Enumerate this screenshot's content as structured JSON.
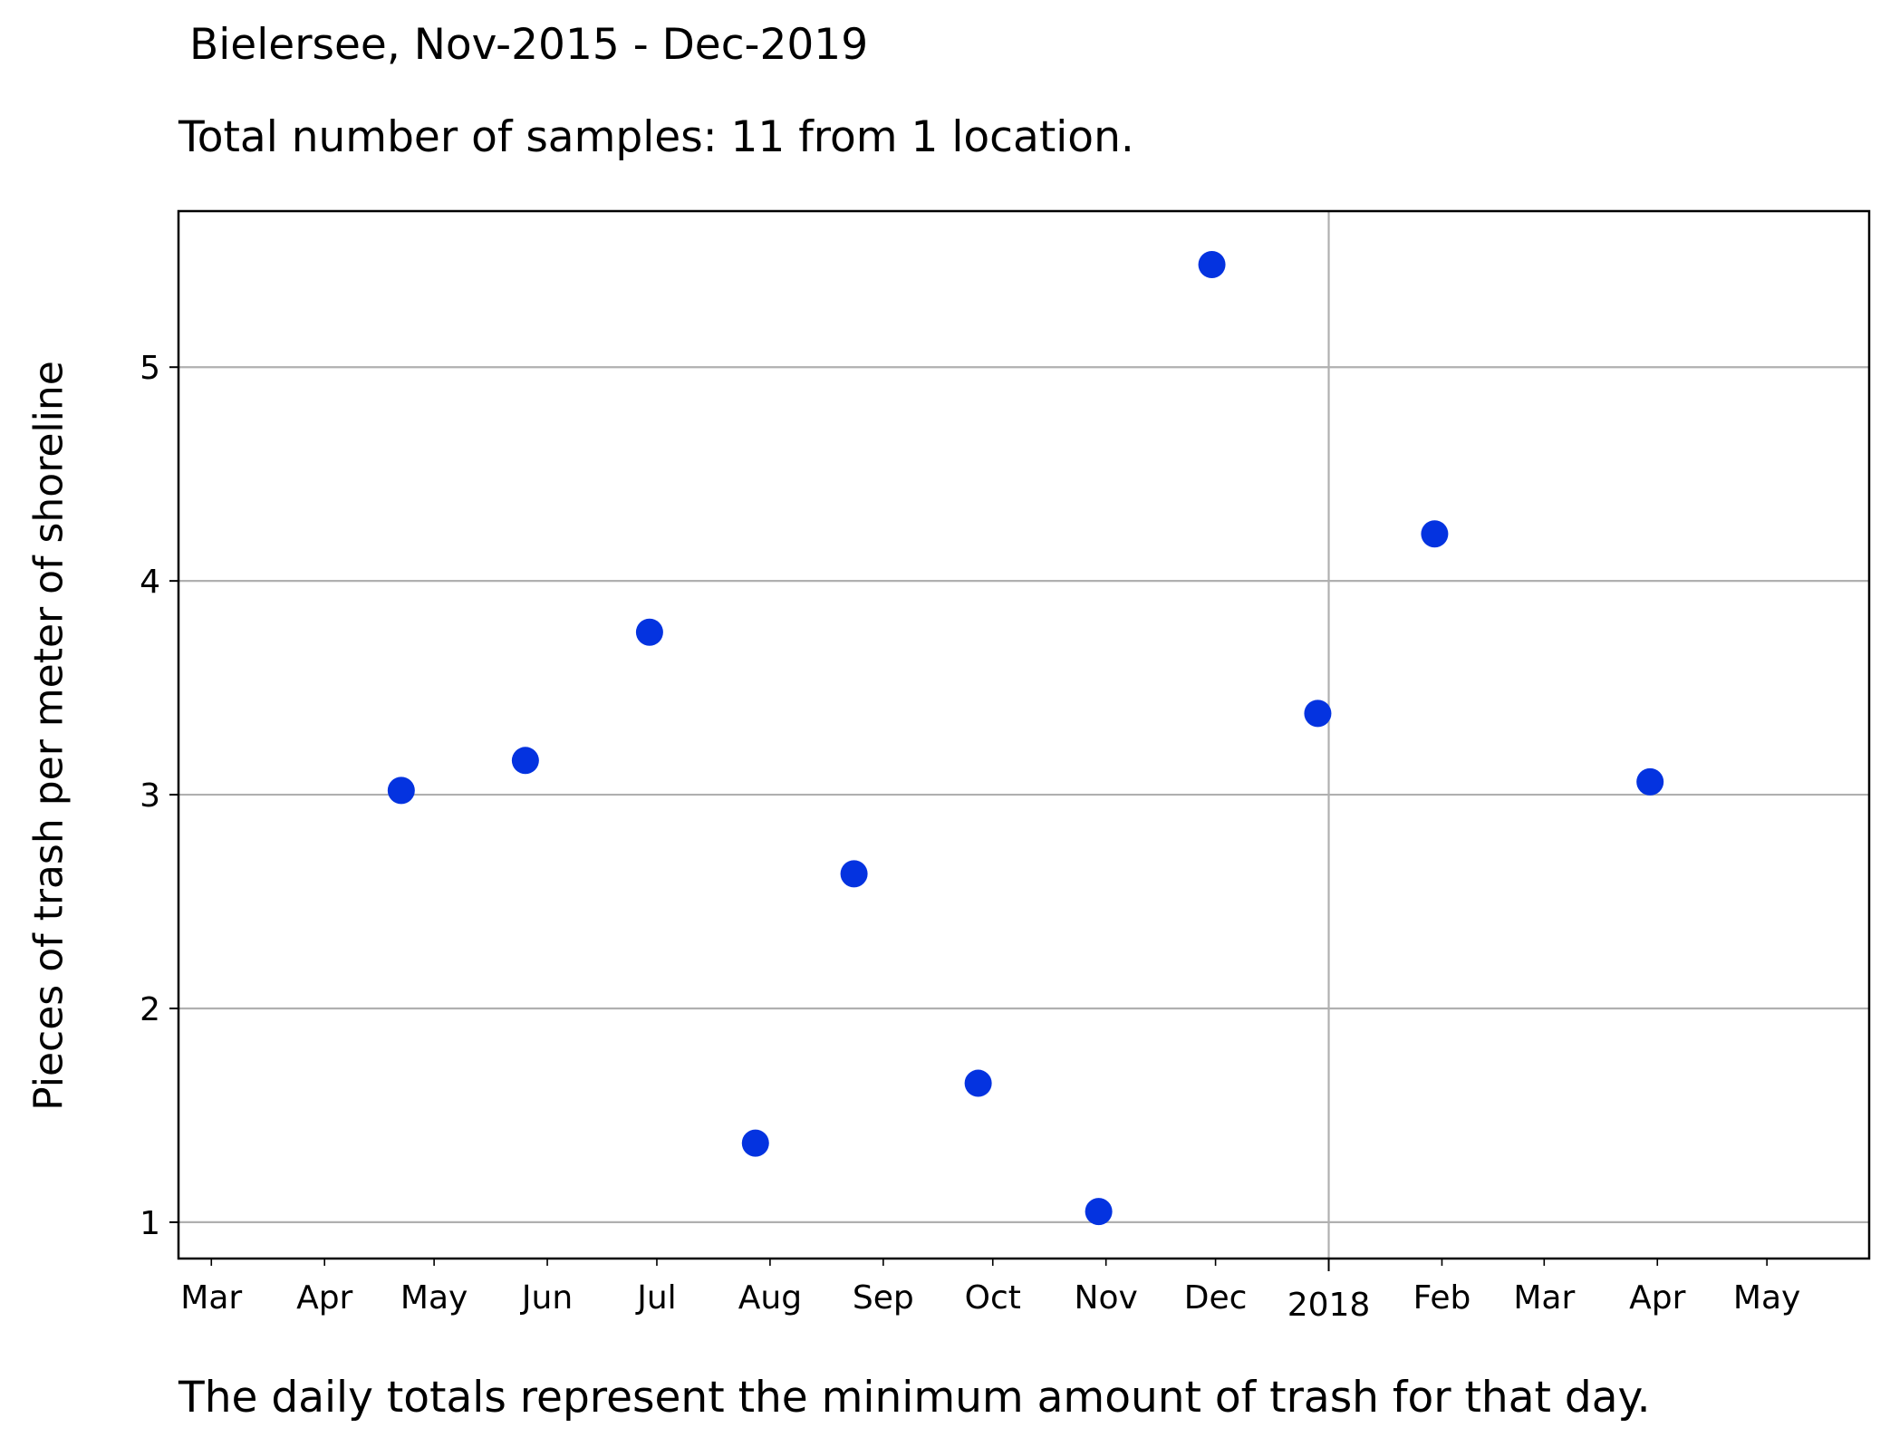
{
  "header": {
    "title": "Bielersee, Nov-2015 - Dec-2019",
    "subtitle": "Total number of samples: 11 from 1 location."
  },
  "footer": {
    "note": "The daily totals represent the minimum amount of trash for that day."
  },
  "chart_data": {
    "type": "scatter",
    "ylabel": "Pieces of trash per meter of shoreline",
    "xlabel": "",
    "ylim": [
      0.83,
      5.73
    ],
    "xlim": [
      "2017-02-20",
      "2018-05-29"
    ],
    "yticks": [
      1,
      2,
      3,
      4,
      5
    ],
    "xticks": [
      {
        "date": "2017-03-01",
        "label": "Mar"
      },
      {
        "date": "2017-04-01",
        "label": "Apr"
      },
      {
        "date": "2017-05-01",
        "label": "May"
      },
      {
        "date": "2017-06-01",
        "label": "Jun"
      },
      {
        "date": "2017-07-01",
        "label": "Jul"
      },
      {
        "date": "2017-08-01",
        "label": "Aug"
      },
      {
        "date": "2017-09-01",
        "label": "Sep"
      },
      {
        "date": "2017-10-01",
        "label": "Oct"
      },
      {
        "date": "2017-11-01",
        "label": "Nov"
      },
      {
        "date": "2017-12-01",
        "label": "Dec"
      },
      {
        "date": "2018-01-01",
        "label": "2018"
      },
      {
        "date": "2018-02-01",
        "label": "Feb"
      },
      {
        "date": "2018-03-01",
        "label": "Mar"
      },
      {
        "date": "2018-04-01",
        "label": "Apr"
      },
      {
        "date": "2018-05-01",
        "label": "May"
      }
    ],
    "grid": true,
    "color": "#0433e0",
    "x": [
      "2017-04-22",
      "2017-05-26",
      "2017-06-29",
      "2017-07-28",
      "2017-08-24",
      "2017-09-27",
      "2017-10-30",
      "2017-11-30",
      "2017-12-29",
      "2018-01-30",
      "2018-03-30"
    ],
    "y": [
      3.02,
      3.16,
      3.76,
      1.37,
      2.63,
      1.65,
      1.05,
      5.48,
      3.38,
      4.22,
      3.06
    ]
  }
}
